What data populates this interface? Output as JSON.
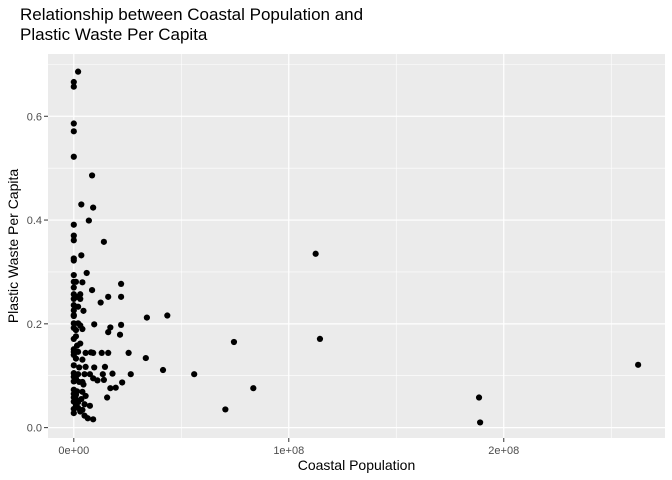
{
  "chart_data": {
    "type": "scatter",
    "title": [
      "Relationship between Coastal Population and",
      "Plastic Waste Per Capita"
    ],
    "xlabel": "Coastal Population",
    "ylabel": "Plastic Waste Per Capita",
    "xlim": [
      -12000000,
      275000000
    ],
    "ylim": [
      -0.02,
      0.72
    ],
    "x_ticks": [
      {
        "value": 0,
        "label": "0e+00"
      },
      {
        "value": 100000000,
        "label": "1e+08"
      },
      {
        "value": 200000000,
        "label": "2e+08"
      }
    ],
    "y_ticks": [
      {
        "value": 0.0,
        "label": "0.0"
      },
      {
        "value": 0.2,
        "label": "0.2"
      },
      {
        "value": 0.4,
        "label": "0.4"
      },
      {
        "value": 0.6,
        "label": "0.6"
      }
    ],
    "grid": true,
    "point_color": "#000000",
    "panel_color": "#ebebeb",
    "grid_color": "#ffffff",
    "points": [
      [
        2000000,
        0.686
      ],
      [
        0,
        0.666
      ],
      [
        0,
        0.657
      ],
      [
        0,
        0.586
      ],
      [
        0,
        0.571
      ],
      [
        0,
        0.522
      ],
      [
        8500000,
        0.486
      ],
      [
        3500000,
        0.43
      ],
      [
        9000000,
        0.424
      ],
      [
        7000000,
        0.399
      ],
      [
        0,
        0.391
      ],
      [
        0,
        0.37
      ],
      [
        0,
        0.361
      ],
      [
        14000000,
        0.358
      ],
      [
        3500000,
        0.332
      ],
      [
        112500000,
        0.335
      ],
      [
        0,
        0.326
      ],
      [
        0,
        0.322
      ],
      [
        6000000,
        0.298
      ],
      [
        0,
        0.294
      ],
      [
        0,
        0.281
      ],
      [
        1000000,
        0.281
      ],
      [
        4000000,
        0.28
      ],
      [
        22000000,
        0.277
      ],
      [
        0,
        0.27
      ],
      [
        8500000,
        0.265
      ],
      [
        0,
        0.257
      ],
      [
        3000000,
        0.257
      ],
      [
        1500000,
        0.252
      ],
      [
        16000000,
        0.252
      ],
      [
        22000000,
        0.252
      ],
      [
        0,
        0.248
      ],
      [
        3000000,
        0.248
      ],
      [
        12500000,
        0.241
      ],
      [
        0,
        0.236
      ],
      [
        2000000,
        0.233
      ],
      [
        0,
        0.226
      ],
      [
        4500000,
        0.225
      ],
      [
        0,
        0.217
      ],
      [
        0,
        0.215
      ],
      [
        43500000,
        0.216
      ],
      [
        34000000,
        0.212
      ],
      [
        0,
        0.201
      ],
      [
        2000000,
        0.201
      ],
      [
        3000000,
        0.197
      ],
      [
        9500000,
        0.199
      ],
      [
        22000000,
        0.198
      ],
      [
        17000000,
        0.193
      ],
      [
        0,
        0.192
      ],
      [
        1000000,
        0.188
      ],
      [
        4000000,
        0.19
      ],
      [
        16000000,
        0.184
      ],
      [
        21500000,
        0.179
      ],
      [
        1000000,
        0.176
      ],
      [
        0,
        0.171
      ],
      [
        114500000,
        0.171
      ],
      [
        74500000,
        0.165
      ],
      [
        3000000,
        0.162
      ],
      [
        1500000,
        0.158
      ],
      [
        0,
        0.151
      ],
      [
        0,
        0.146
      ],
      [
        2000000,
        0.146
      ],
      [
        5500000,
        0.144
      ],
      [
        8000000,
        0.145
      ],
      [
        9000000,
        0.144
      ],
      [
        13000000,
        0.144
      ],
      [
        16000000,
        0.144
      ],
      [
        25500000,
        0.144
      ],
      [
        0,
        0.14
      ],
      [
        33500000,
        0.134
      ],
      [
        1000000,
        0.133
      ],
      [
        4000000,
        0.131
      ],
      [
        0,
        0.12
      ],
      [
        2500000,
        0.116
      ],
      [
        5500000,
        0.117
      ],
      [
        9500000,
        0.116
      ],
      [
        14500000,
        0.117
      ],
      [
        262500000,
        0.121
      ],
      [
        41500000,
        0.111
      ],
      [
        0,
        0.105
      ],
      [
        2000000,
        0.103
      ],
      [
        5000000,
        0.103
      ],
      [
        7500000,
        0.103
      ],
      [
        13500000,
        0.103
      ],
      [
        18000000,
        0.104
      ],
      [
        26500000,
        0.103
      ],
      [
        56000000,
        0.103
      ],
      [
        0,
        0.098
      ],
      [
        1000000,
        0.095
      ],
      [
        9000000,
        0.095
      ],
      [
        11000000,
        0.091
      ],
      [
        14000000,
        0.092
      ],
      [
        0,
        0.089
      ],
      [
        2500000,
        0.088
      ],
      [
        4000000,
        0.088
      ],
      [
        22500000,
        0.087
      ],
      [
        4500000,
        0.083
      ],
      [
        17000000,
        0.076
      ],
      [
        19500000,
        0.077
      ],
      [
        83500000,
        0.076
      ],
      [
        0,
        0.073
      ],
      [
        1500000,
        0.07
      ],
      [
        4000000,
        0.069
      ],
      [
        0,
        0.065
      ],
      [
        1000000,
        0.063
      ],
      [
        5500000,
        0.061
      ],
      [
        15500000,
        0.058
      ],
      [
        0,
        0.058
      ],
      [
        3500000,
        0.055
      ],
      [
        188500000,
        0.058
      ],
      [
        1000000,
        0.054
      ],
      [
        0,
        0.05
      ],
      [
        2000000,
        0.049
      ],
      [
        5000000,
        0.045
      ],
      [
        1000000,
        0.043
      ],
      [
        7500000,
        0.042
      ],
      [
        2000000,
        0.038
      ],
      [
        0,
        0.036
      ],
      [
        4000000,
        0.034
      ],
      [
        70500000,
        0.035
      ],
      [
        3000000,
        0.031
      ],
      [
        0,
        0.028
      ],
      [
        5000000,
        0.023
      ],
      [
        6500000,
        0.018
      ],
      [
        9000000,
        0.016
      ],
      [
        189000000,
        0.01
      ]
    ]
  }
}
